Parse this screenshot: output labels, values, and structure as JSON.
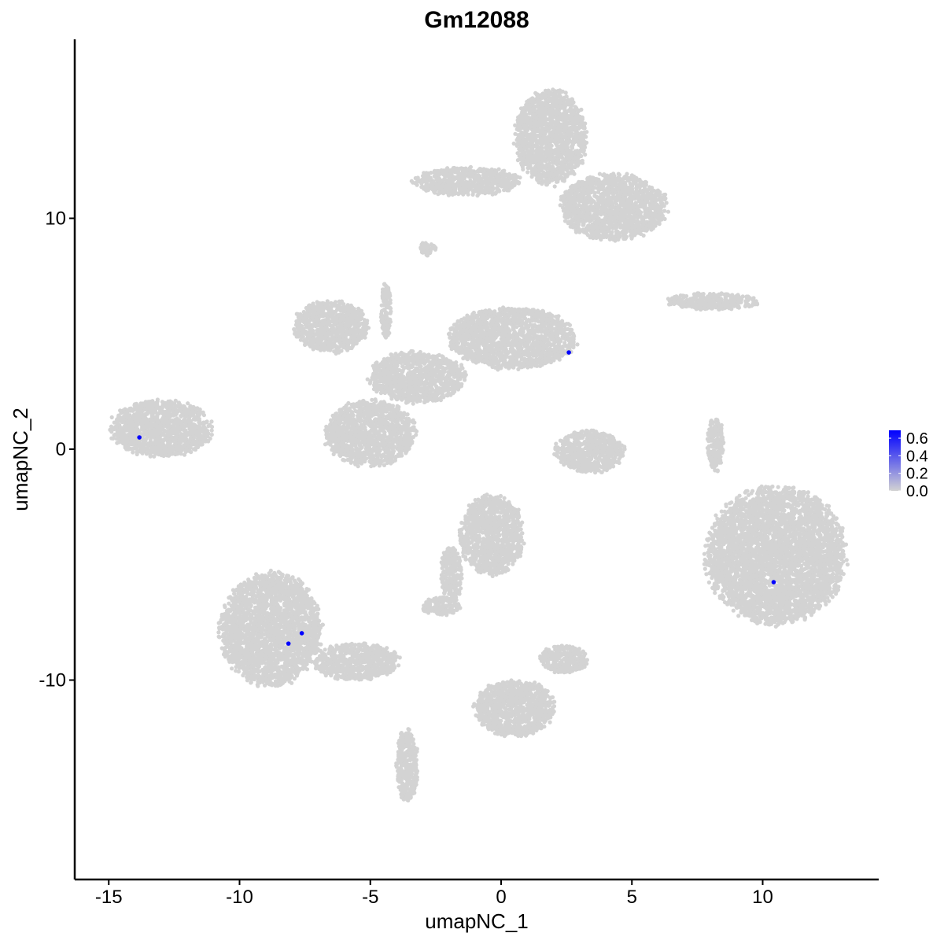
{
  "chart_data": {
    "type": "scatter",
    "title": "Gm12088",
    "xlabel": "umapNC_1",
    "ylabel": "umapNC_2",
    "xlim": [
      -16.5,
      14.5
    ],
    "ylim": [
      -18.5,
      17.5
    ],
    "x_ticks": [
      -15,
      -10,
      -5,
      0,
      5,
      10
    ],
    "y_ticks": [
      -10,
      0,
      10
    ],
    "x_tick_labels": [
      "-15",
      "-10",
      "-5",
      "0",
      "5",
      "10"
    ],
    "y_tick_labels": [
      "-10",
      "0",
      "10"
    ],
    "grid": false,
    "background_color": "#D3D3D3",
    "background_clusters": [
      {
        "cx": 1.9,
        "cy": 13.5,
        "rx": 1.35,
        "ry": 2.0
      },
      {
        "cx": -1.3,
        "cy": 11.6,
        "rx": 2.0,
        "ry": 0.6
      },
      {
        "cx": 4.3,
        "cy": 10.5,
        "rx": 2.0,
        "ry": 1.4
      },
      {
        "cx": -2.8,
        "cy": 8.7,
        "rx": 0.3,
        "ry": 0.3
      },
      {
        "cx": 8.1,
        "cy": 6.4,
        "rx": 1.7,
        "ry": 0.35
      },
      {
        "cx": -6.5,
        "cy": 5.3,
        "rx": 1.4,
        "ry": 1.1
      },
      {
        "cx": 0.4,
        "cy": 4.8,
        "rx": 2.4,
        "ry": 1.3
      },
      {
        "cx": -3.2,
        "cy": 3.1,
        "rx": 1.8,
        "ry": 1.1
      },
      {
        "cx": -4.4,
        "cy": 6.0,
        "rx": 0.2,
        "ry": 1.2
      },
      {
        "cx": -5.0,
        "cy": 0.7,
        "rx": 1.7,
        "ry": 1.4
      },
      {
        "cx": -13.0,
        "cy": 0.9,
        "rx": 1.9,
        "ry": 1.2
      },
      {
        "cx": 3.4,
        "cy": -0.1,
        "rx": 1.3,
        "ry": 0.9
      },
      {
        "cx": 8.2,
        "cy": 0.2,
        "rx": 0.3,
        "ry": 1.2
      },
      {
        "cx": 10.5,
        "cy": -4.6,
        "rx": 2.6,
        "ry": 2.9
      },
      {
        "cx": -0.35,
        "cy": -3.7,
        "rx": 1.2,
        "ry": 1.7
      },
      {
        "cx": -8.8,
        "cy": -7.8,
        "rx": 1.9,
        "ry": 2.4
      },
      {
        "cx": -5.5,
        "cy": -9.2,
        "rx": 1.6,
        "ry": 0.8
      },
      {
        "cx": -3.6,
        "cy": -13.7,
        "rx": 0.4,
        "ry": 1.6
      },
      {
        "cx": -2.3,
        "cy": -6.8,
        "rx": 0.7,
        "ry": 0.4
      },
      {
        "cx": 2.4,
        "cy": -9.1,
        "rx": 0.9,
        "ry": 0.6
      },
      {
        "cx": 0.5,
        "cy": -11.2,
        "rx": 1.5,
        "ry": 1.2
      },
      {
        "cx": -1.9,
        "cy": -5.4,
        "rx": 0.4,
        "ry": 1.2
      }
    ],
    "expressing_points": [
      {
        "x": 2.59,
        "y": 4.19,
        "value": 0.69
      },
      {
        "x": -13.83,
        "y": 0.51,
        "value": 0.69
      },
      {
        "x": 10.42,
        "y": -5.76,
        "value": 0.69
      },
      {
        "x": -7.62,
        "y": -7.97,
        "value": 0.69
      },
      {
        "x": -8.13,
        "y": -8.42,
        "value": 0.69
      }
    ],
    "color_scale": {
      "low": "#D3D3D3",
      "high": "#0000FF",
      "min": 0.0,
      "max": 0.69
    },
    "legend": {
      "position": "right",
      "breaks": [
        0.0,
        0.2,
        0.4,
        0.6
      ],
      "labels": [
        "0.0",
        "0.2",
        "0.4",
        "0.6"
      ]
    }
  }
}
